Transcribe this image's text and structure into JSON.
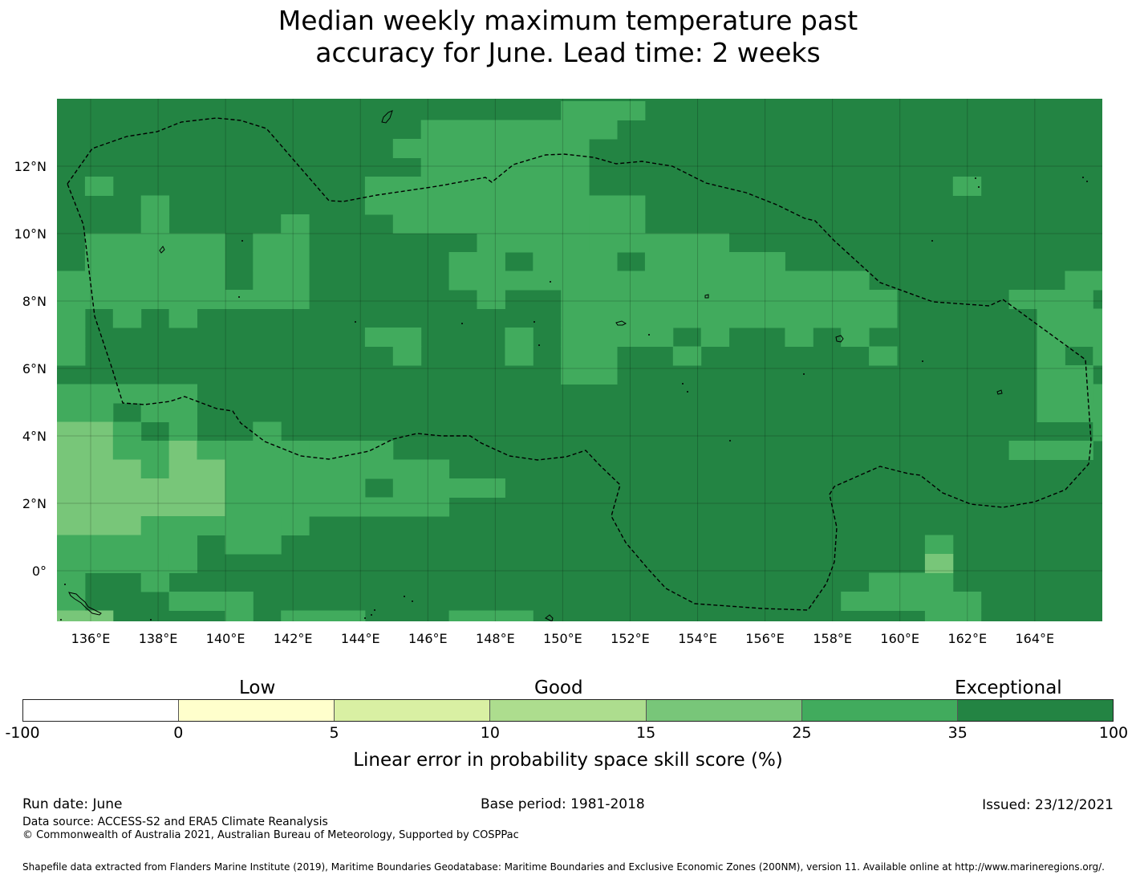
{
  "title": {
    "line1": "Median weekly maximum temperature past",
    "line2": "accuracy for June. Lead time: 2 weeks"
  },
  "map": {
    "lat_labels": [
      "12°N",
      "10°N",
      "8°N",
      "6°N",
      "4°N",
      "2°N",
      "0°"
    ],
    "lon_labels": [
      "136°E",
      "138°E",
      "140°E",
      "142°E",
      "144°E",
      "146°E",
      "148°E",
      "150°E",
      "152°E",
      "154°E",
      "156°E",
      "158°E",
      "160°E",
      "162°E",
      "164°E"
    ],
    "colors": {
      "exceptional_dark": "#238443",
      "good_mid": "#41ab5d",
      "good_light": "#78c679"
    },
    "boundary_style": "dashed black line (EEZ)",
    "coastline_style": "thin black outline"
  },
  "legend": {
    "categories": [
      "Low",
      "Good",
      "Exceptional"
    ],
    "colors": [
      "#ffffff",
      "#ffffcc",
      "#d9f0a3",
      "#addd8e",
      "#78c679",
      "#41ab5d",
      "#238443"
    ],
    "ticks": [
      "-100",
      "0",
      "5",
      "10",
      "15",
      "25",
      "35",
      "100"
    ],
    "axis_label": "Linear error in probability space skill score (%)"
  },
  "footer": {
    "run_date": "Run date: June",
    "base_period": "Base period: 1981-2018",
    "issued": "Issued: 23/12/2021",
    "data_source": "Data source: ACCESS-S2 and ERA5 Climate Reanalysis",
    "copyright": "© Commonwealth of Australia 2021, Australian Bureau of Meteorology, Supported by COSPPac",
    "shapefile": "Shapefile data extracted from Flanders Marine Institute (2019), Maritime Boundaries Geodatabase: Maritime Boundaries and Exclusive Economic Zones (200NM), version 11. Available online at http://www.marineregions.org/."
  }
}
